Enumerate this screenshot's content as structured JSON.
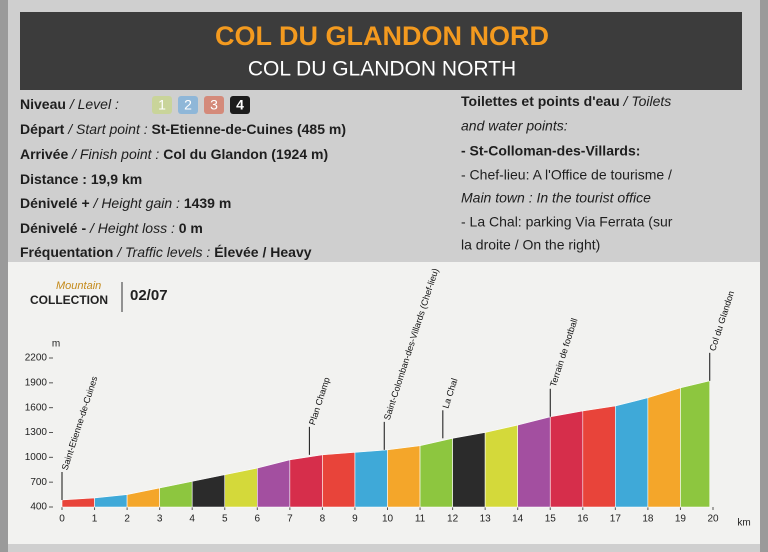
{
  "header": {
    "title": "COL DU GLANDON NORD",
    "subtitle": "COL DU GLANDON NORTH"
  },
  "info": [
    {
      "label": "Niveau",
      "label_en": "/ Level :",
      "levels": [
        "1",
        "2",
        "3",
        "4"
      ]
    },
    {
      "label": "Départ",
      "label_en": "/ Start point :",
      "value": "St-Etienne-de-Cuines (485 m)"
    },
    {
      "label": "Arrivée",
      "label_en": "/ Finish point :",
      "value": "Col du Glandon (1924 m)"
    },
    {
      "label": "Distance",
      "label_en": ":",
      "value": "19,9 km"
    },
    {
      "label": "Dénivelé +",
      "label_en": "/ Height gain :",
      "value": "1439 m"
    },
    {
      "label": "Dénivelé -",
      "label_en": "/ Height loss :",
      "value": "0 m"
    },
    {
      "label": "Fréquentation",
      "label_en": "/ Traffic levels :",
      "value": "Élevée / Heavy"
    }
  ],
  "water_points": {
    "title": "Toilettes et points d'eau",
    "title_en": [
      "/ Toilets",
      "and water points:"
    ],
    "place": "- St-Colloman-des-Villards:",
    "lines": [
      "- Chef-lieu: A l'Office de tourisme /",
      "Main town : In the tourist office",
      "- La Chal: parking Via Ferrata (sur",
      "la droite / On the right)"
    ]
  },
  "brand": {
    "top": "Mountain",
    "bottom": "COLLECTION",
    "number": "02/07"
  },
  "chart_data": {
    "type": "area",
    "x_label": "km",
    "y_label": "m",
    "x": [
      0,
      1,
      2,
      3,
      4,
      5,
      6,
      7,
      8,
      9,
      10,
      11,
      12,
      13,
      14,
      15,
      16,
      17,
      18,
      19,
      19.9
    ],
    "values": [
      485,
      510,
      550,
      630,
      710,
      790,
      870,
      970,
      1030,
      1060,
      1090,
      1140,
      1230,
      1300,
      1390,
      1490,
      1560,
      1620,
      1720,
      1840,
      1924
    ],
    "colors": [
      "#e8443a",
      "#3fa9d8",
      "#f4a62a",
      "#8dc63f",
      "#2b2b2b",
      "#d4d93a",
      "#a34fa0",
      "#d62e4b"
    ],
    "xlim": [
      0,
      20
    ],
    "xticks": [
      0,
      1,
      2,
      3,
      4,
      5,
      6,
      7,
      8,
      9,
      10,
      11,
      12,
      13,
      14,
      15,
      16,
      17,
      18,
      19,
      20
    ],
    "ylim": [
      400,
      2200
    ],
    "yticks": [
      400,
      700,
      1000,
      1300,
      1600,
      1900,
      2200
    ],
    "annotations": [
      {
        "text": "Saint-Etienne-de-Cuines",
        "x": 0
      },
      {
        "text": "Plan Champ",
        "x": 7.6
      },
      {
        "text": "Saint-Colomban-des-Villards (Chef-lieu)",
        "x": 9.9
      },
      {
        "text": "La Chal",
        "x": 11.7
      },
      {
        "text": "Terrain de football",
        "x": 15
      },
      {
        "text": "Col du Glandon",
        "x": 19.9
      }
    ]
  }
}
